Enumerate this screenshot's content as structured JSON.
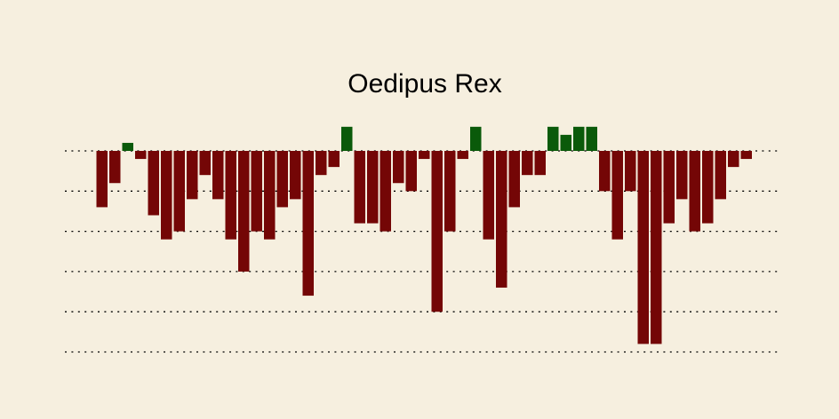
{
  "chart_data": {
    "type": "bar",
    "title": "Oedipus Rex",
    "xlabel": "",
    "ylabel": "",
    "grid": true,
    "ylim": [
      -5,
      0.5
    ],
    "gridlines": [
      0,
      -1,
      -2,
      -3,
      -4,
      -5
    ],
    "values": [
      -1.4,
      -0.8,
      0.2,
      -0.2,
      -1.6,
      -2.2,
      -2.0,
      -1.2,
      -0.6,
      -1.2,
      -2.2,
      -3.0,
      -2.0,
      -2.2,
      -1.4,
      -1.2,
      -3.6,
      -0.6,
      -0.4,
      0.6,
      -1.8,
      -1.8,
      -2.0,
      -0.8,
      -1.0,
      -0.2,
      -4.0,
      -2.0,
      -0.2,
      0.6,
      -2.2,
      -3.4,
      -1.4,
      -0.6,
      -0.6,
      0.6,
      0.4,
      0.6,
      0.6,
      -1.0,
      -2.2,
      -1.0,
      -4.8,
      -4.8,
      -1.8,
      -1.2,
      -2.0,
      -1.8,
      -1.2,
      -0.4,
      -0.2
    ],
    "colors": {
      "positive": "#0a5a0a",
      "negative": "#740606",
      "background": "#f6efdf",
      "grid": "#000000"
    }
  }
}
